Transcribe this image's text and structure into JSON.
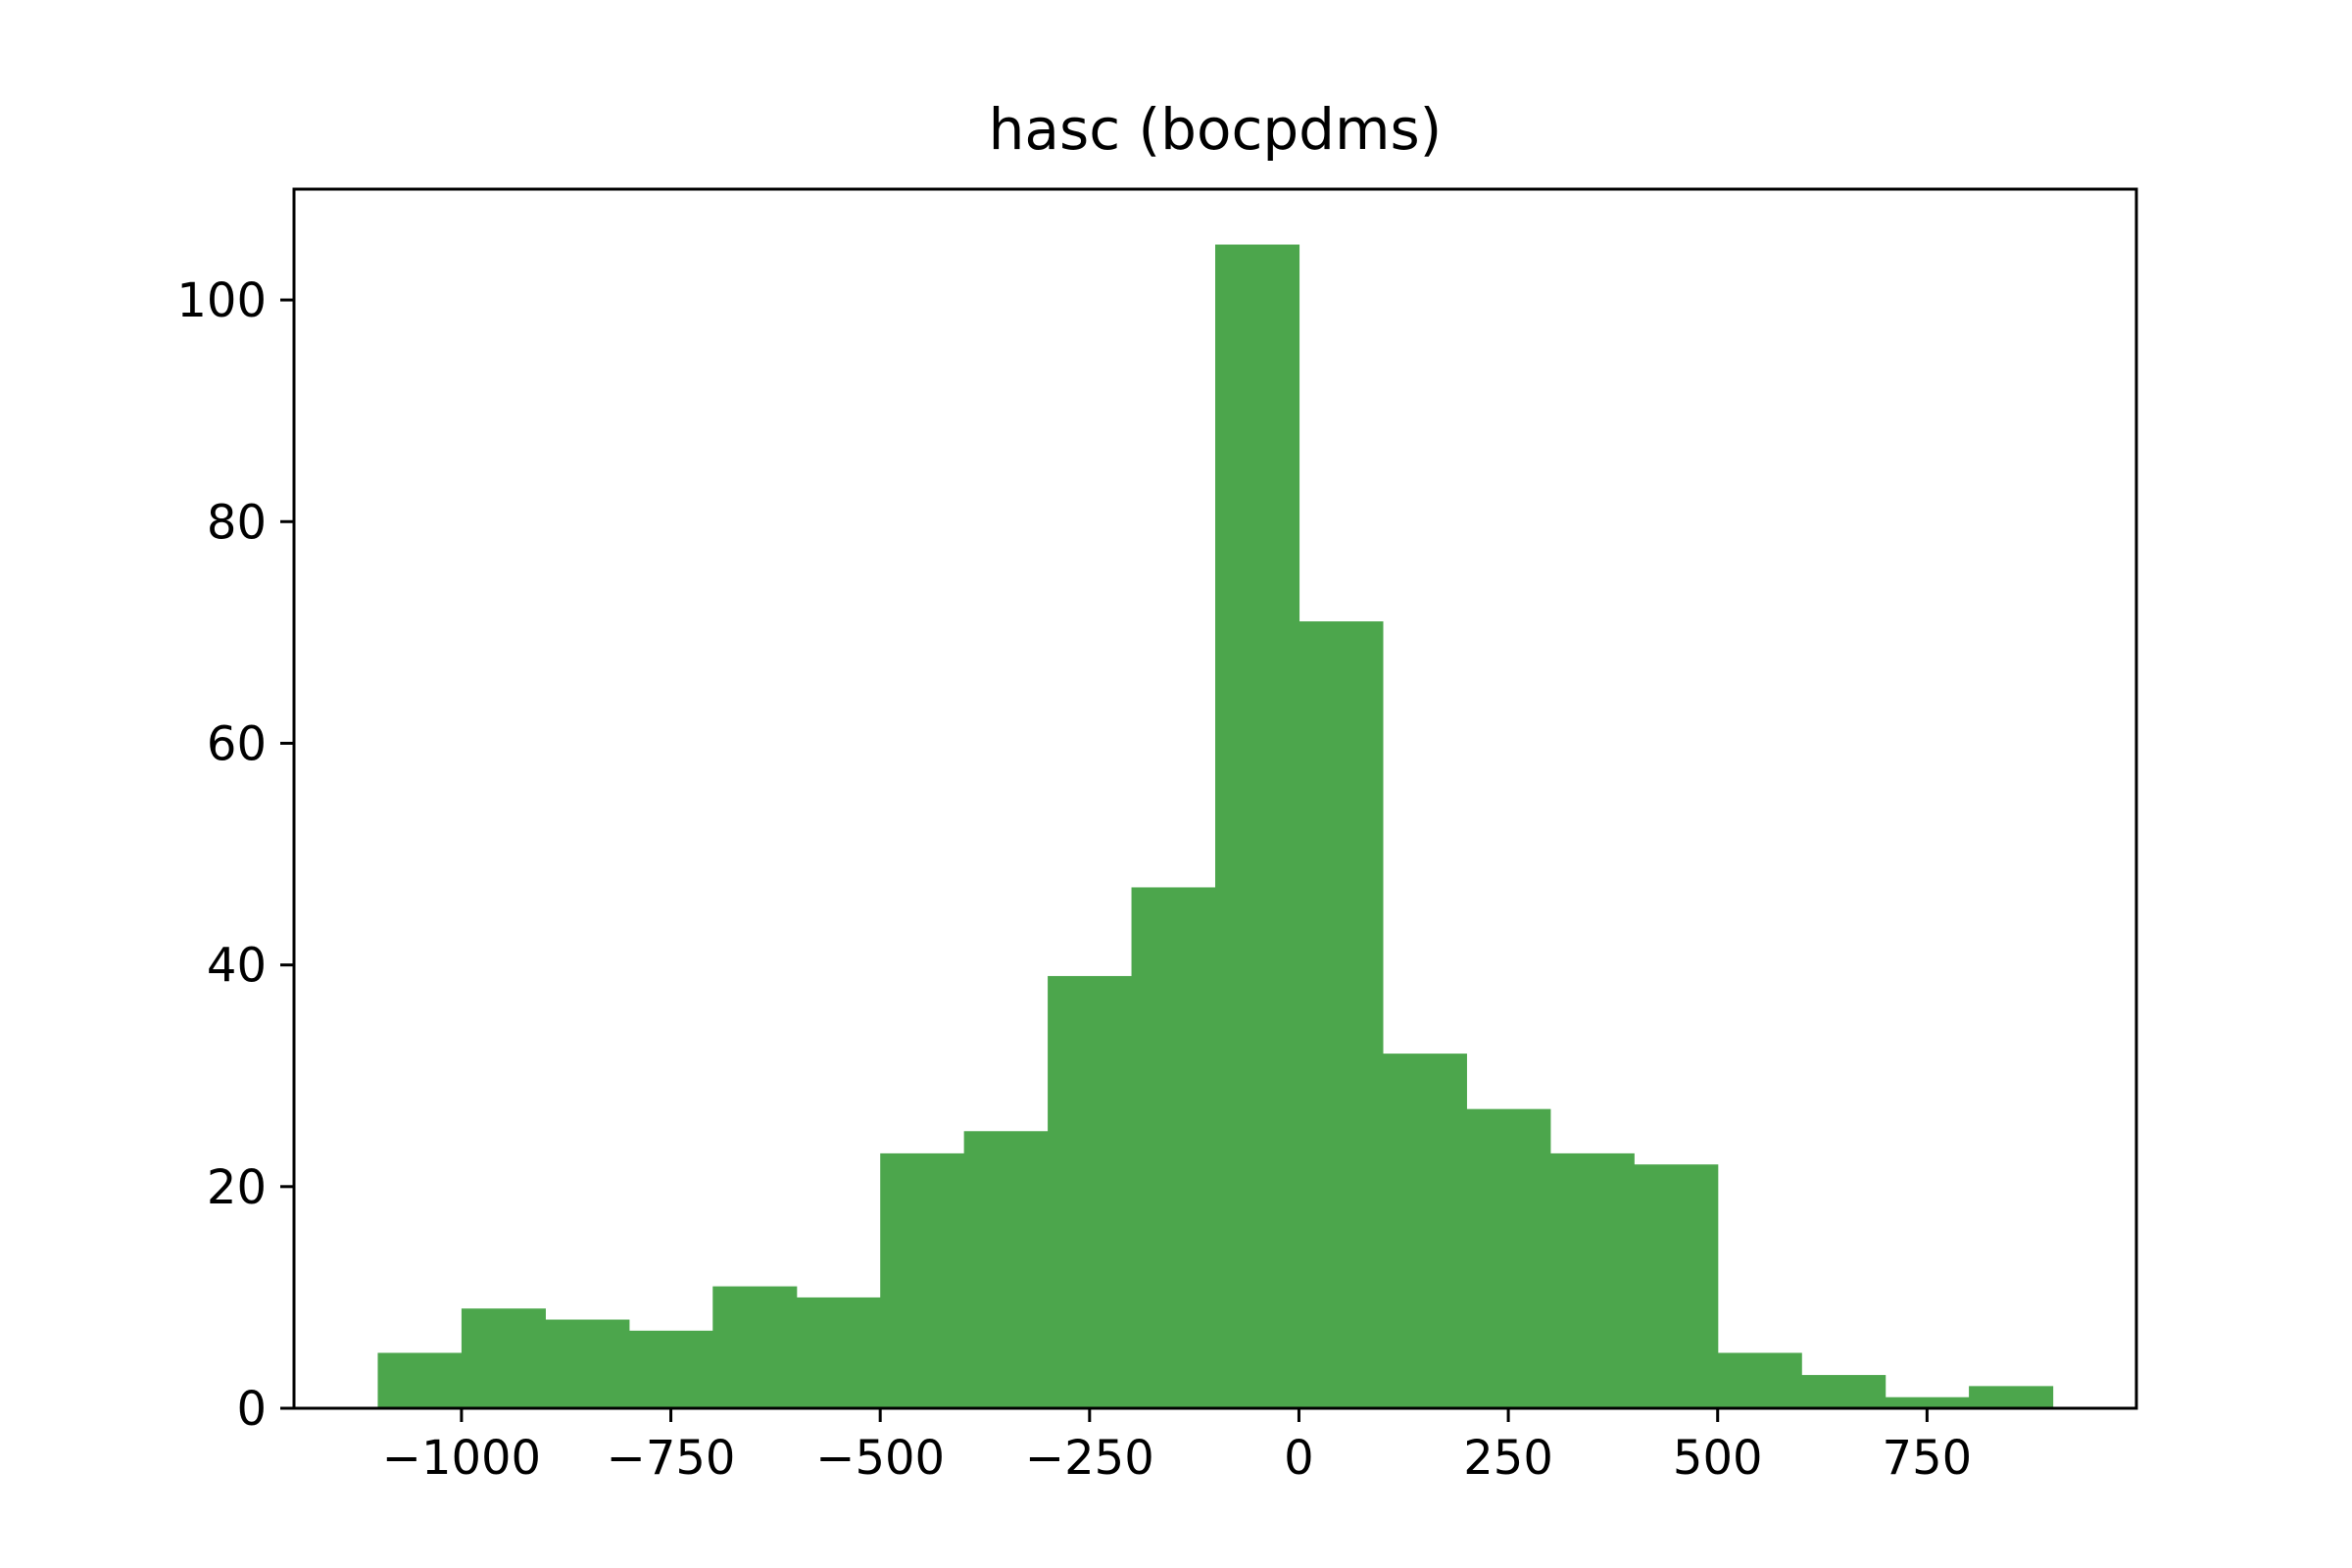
{
  "chart_data": {
    "type": "bar",
    "subtype": "histogram",
    "title": "hasc (bocpdms)",
    "xlabel": "",
    "ylabel": "",
    "bar_color": "#4ca64c",
    "bins": [
      {
        "x0": -1100,
        "x1": -1000,
        "count": 5
      },
      {
        "x0": -1000,
        "x1": -900,
        "count": 9
      },
      {
        "x0": -900,
        "x1": -800,
        "count": 8
      },
      {
        "x0": -800,
        "x1": -700,
        "count": 7
      },
      {
        "x0": -700,
        "x1": -600,
        "count": 11
      },
      {
        "x0": -600,
        "x1": -500,
        "count": 10
      },
      {
        "x0": -500,
        "x1": -400,
        "count": 23
      },
      {
        "x0": -400,
        "x1": -300,
        "count": 25
      },
      {
        "x0": -300,
        "x1": -200,
        "count": 39
      },
      {
        "x0": -200,
        "x1": -100,
        "count": 47
      },
      {
        "x0": -100,
        "x1": 0,
        "count": 105
      },
      {
        "x0": 0,
        "x1": 100,
        "count": 71
      },
      {
        "x0": 100,
        "x1": 200,
        "count": 32
      },
      {
        "x0": 200,
        "x1": 300,
        "count": 27
      },
      {
        "x0": 300,
        "x1": 400,
        "count": 23
      },
      {
        "x0": 400,
        "x1": 500,
        "count": 22
      },
      {
        "x0": 500,
        "x1": 600,
        "count": 5
      },
      {
        "x0": 600,
        "x1": 700,
        "count": 3
      },
      {
        "x0": 700,
        "x1": 800,
        "count": 1
      },
      {
        "x0": 800,
        "x1": 900,
        "count": 2
      }
    ],
    "xlim": [
      -1200,
      1000
    ],
    "ylim": [
      0,
      110
    ],
    "x_ticks": [
      -1000,
      -750,
      -500,
      -250,
      0,
      250,
      500,
      750
    ],
    "x_tick_labels": [
      "−1000",
      "−750",
      "−500",
      "−250",
      "0",
      "250",
      "500",
      "750"
    ],
    "y_ticks": [
      0,
      20,
      40,
      60,
      80,
      100
    ],
    "y_tick_labels": [
      "0",
      "20",
      "40",
      "60",
      "80",
      "100"
    ],
    "grid": false,
    "legend": "none"
  }
}
